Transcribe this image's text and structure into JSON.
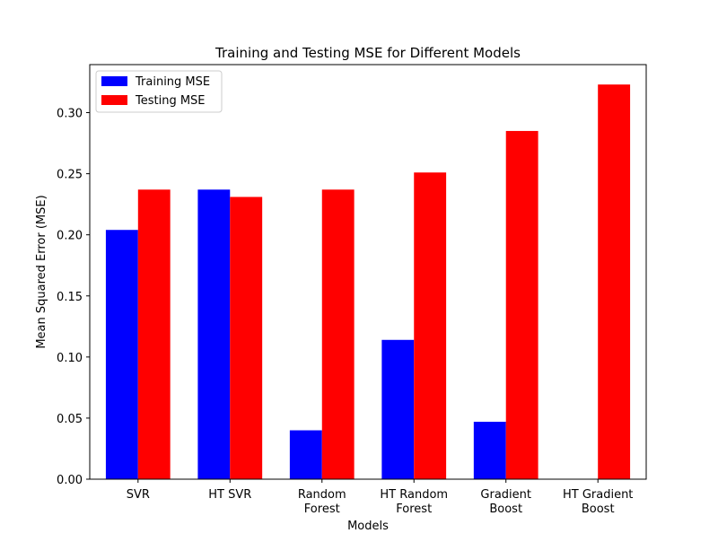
{
  "chart_data": {
    "type": "bar",
    "title": "Training and Testing MSE for Different Models",
    "xlabel": "Models",
    "ylabel": "Mean Squared Error (MSE)",
    "categories": [
      [
        "SVR"
      ],
      [
        "HT SVR"
      ],
      [
        "Random",
        "Forest"
      ],
      [
        "HT Random",
        "Forest"
      ],
      [
        "Gradient",
        "Boost"
      ],
      [
        "HT Gradient",
        "Boost"
      ]
    ],
    "series": [
      {
        "name": "Training MSE",
        "color": "#0000ff",
        "values": [
          0.204,
          0.237,
          0.04,
          0.114,
          0.047,
          0.0
        ]
      },
      {
        "name": "Testing MSE",
        "color": "#ff0000",
        "values": [
          0.237,
          0.231,
          0.237,
          0.251,
          0.285,
          0.323
        ]
      }
    ],
    "ylim": [
      0,
      0.3393
    ],
    "yticks": [
      "0.00",
      "0.05",
      "0.10",
      "0.15",
      "0.20",
      "0.25",
      "0.30"
    ],
    "grid": false,
    "legend_position": "top-left"
  }
}
